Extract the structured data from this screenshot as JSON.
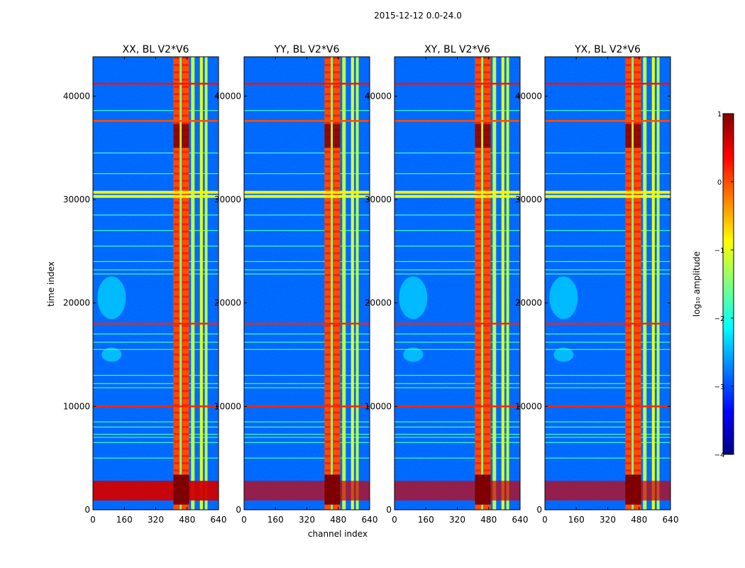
{
  "figure": {
    "suptitle": "2015-12-12 0.0-24.0"
  },
  "chart_data": {
    "type": "heatmap",
    "title": "2015-12-12 0.0-24.0",
    "xlabel": "channel index",
    "ylabel": "time index",
    "xlim": [
      0,
      640
    ],
    "ylim": [
      0,
      43800
    ],
    "xticks": [
      0,
      160,
      320,
      480,
      640
    ],
    "yticks": [
      0,
      10000,
      20000,
      30000,
      40000
    ],
    "colormap": "jet",
    "colorbar": {
      "label": "log₁₀ amplitude",
      "range": [
        -4,
        1
      ],
      "ticks": [
        1,
        0,
        -1,
        -2,
        -3,
        -4
      ],
      "tick_labels": [
        "1",
        "0",
        "−1",
        "−2",
        "−3",
        "−4"
      ],
      "stops": [
        "#00007f",
        "#0000ff",
        "#007fff",
        "#00ffff",
        "#7fff7f",
        "#ffff00",
        "#ff7f00",
        "#ff0000",
        "#7f0000"
      ]
    },
    "panels": [
      {
        "title": "XX, BL V2*V6",
        "blob": true
      },
      {
        "title": "YY, BL V2*V6",
        "blob": false
      },
      {
        "title": "XY, BL V2*V6",
        "blob": true
      },
      {
        "title": "YX, BL V2*V6",
        "blob": true
      }
    ],
    "features": {
      "background_log_amp": -2.9,
      "channel_bands": [
        {
          "x0": 410,
          "x1": 442,
          "value": 0.0
        },
        {
          "x0": 442,
          "x1": 452,
          "value": -1.5
        },
        {
          "x0": 452,
          "x1": 490,
          "value": 0.0
        },
        {
          "x0": 500,
          "x1": 518,
          "value": -1.2
        },
        {
          "x0": 545,
          "x1": 560,
          "value": -1.0
        },
        {
          "x0": 570,
          "x1": 584,
          "value": -1.2
        }
      ],
      "strong_horizontal_lines": [
        {
          "t": 41200,
          "value": 0.3
        },
        {
          "t": 37600,
          "value": 0.0
        },
        {
          "t": 30300,
          "value": -1.0
        },
        {
          "t": 30700,
          "value": -0.8
        },
        {
          "t": 18000,
          "value": 0.2
        },
        {
          "t": 10000,
          "value": 0.2
        }
      ],
      "weak_horizontal_lines": [
        38600,
        34500,
        32500,
        28500,
        27000,
        25500,
        24000,
        23200,
        22800,
        17000,
        16200,
        15500,
        13000,
        12200,
        11800,
        8500,
        8000,
        7300,
        7000,
        6500,
        5000
      ],
      "low_time_burst": {
        "t0": 900,
        "t1": 2800,
        "value": 0.6
      },
      "high_amplitude_region": {
        "t0": 35000,
        "t1": 37300,
        "x0": 410,
        "x1": 490,
        "value": 1.0
      }
    }
  }
}
